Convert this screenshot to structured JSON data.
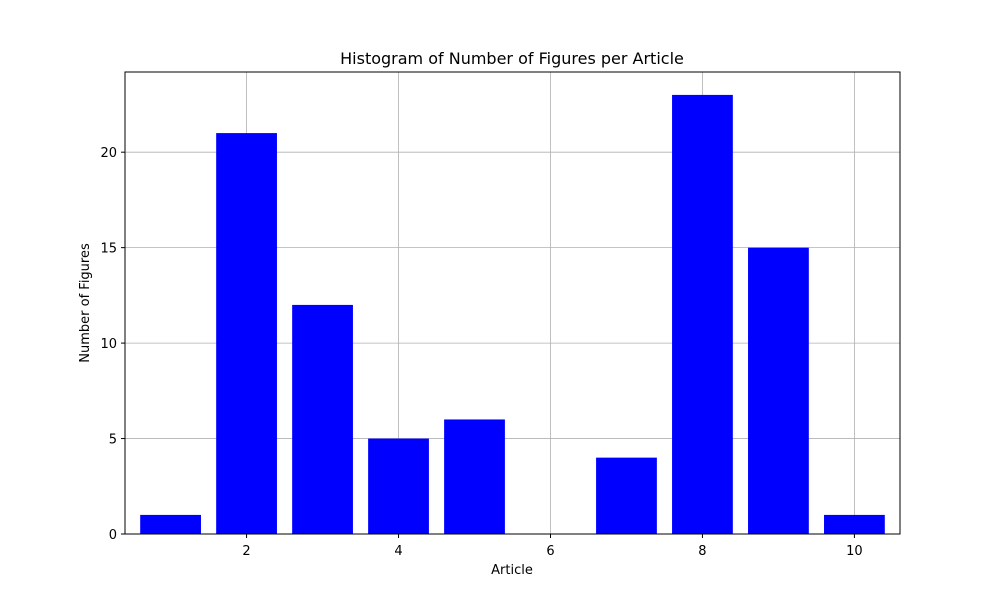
{
  "chart_data": {
    "type": "bar",
    "title": "Histogram of Number of Figures per Article",
    "xlabel": "Article",
    "ylabel": "Number of Figures",
    "x": [
      1,
      2,
      3,
      4,
      5,
      6,
      7,
      8,
      9,
      10
    ],
    "values": [
      1,
      21,
      12,
      5,
      6,
      0,
      4,
      23,
      15,
      1
    ],
    "xlim": [
      0.4,
      10.6
    ],
    "ylim": [
      0,
      24.2
    ],
    "xticks": [
      2,
      4,
      6,
      8,
      10
    ],
    "yticks": [
      0,
      5,
      10,
      15,
      20
    ],
    "bar_color": "#0000ff",
    "grid": true,
    "grid_color": "#b0b0b0",
    "legend": false
  }
}
